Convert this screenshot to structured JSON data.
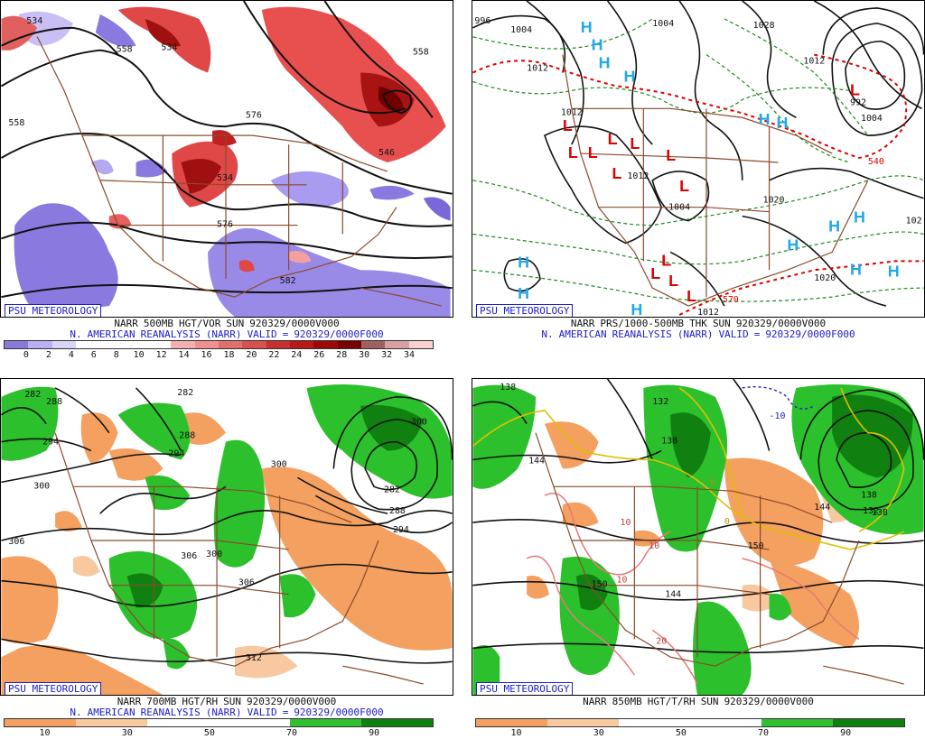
{
  "credit": "PSU METEOROLOGY",
  "panels": [
    {
      "id": "p500",
      "line1_parts": [
        "NARR",
        "500MB",
        "HGT/VOR",
        "SUN",
        "920329/0000V000"
      ],
      "line2_parts": [
        "N.",
        "AMERICAN",
        "REANALYSIS",
        "(NARR)",
        "VALID",
        "=",
        "920329/0000F000"
      ],
      "scale_colors": [
        "#8878d8",
        "#b8b0f0",
        "#d8d4f8",
        "#ffffff",
        "#ffffff",
        "#ffffff",
        "#ffffff",
        "#f4b0b0",
        "#f09090",
        "#e07070",
        "#d85050",
        "#c83030",
        "#b81818",
        "#a00808",
        "#780000",
        "#a06060",
        "#d8a0a0",
        "#f8d0d0"
      ],
      "scale_labels": [
        "0",
        "2",
        "4",
        "6",
        "8",
        "10",
        "12",
        "14",
        "16",
        "18",
        "20",
        "22",
        "24",
        "26",
        "28",
        "30",
        "32",
        "34"
      ],
      "contour_labels": [
        "534",
        "558",
        "558",
        "534",
        "576",
        "558",
        "546",
        "576",
        "582",
        "534"
      ]
    },
    {
      "id": "pmslp",
      "line1_parts": [
        "NARR",
        "PRS/1000-500MB",
        "THK",
        "SUN",
        "920329/0000V000"
      ],
      "line2_parts": [
        "N.",
        "AMERICAN",
        "REANALYSIS",
        "(NARR)",
        "VALID",
        "=",
        "920329/0000F000"
      ],
      "pressure_labels": [
        "996",
        "1004",
        "1012",
        "1004",
        "1028",
        "1012",
        "1012",
        "1012",
        "1004",
        "1020",
        "1020",
        "1012",
        "102",
        "1004",
        "992"
      ],
      "thickness_labels": [
        "540",
        "570"
      ]
    },
    {
      "id": "p700",
      "line1_parts": [
        "NARR",
        "700MB",
        "HGT/RH",
        "SUN",
        "920329/0000V000"
      ],
      "line2_parts": [
        "N.",
        "AMERICAN",
        "REANALYSIS",
        "(NARR)",
        "VALID",
        "=",
        "920329/0000F000"
      ],
      "scale_colors": [
        "#f4a060",
        "#f4a060",
        "#f8c8a0",
        "#f8c8a0",
        "#ffffff",
        "#ffffff",
        "#ffffff",
        "#ffffff",
        "#30c030",
        "#30c030",
        "#108010",
        "#108010"
      ],
      "scale_labels": [
        "10",
        "30",
        "50",
        "70",
        "90"
      ],
      "contour_labels": [
        "282",
        "288",
        "282",
        "294",
        "288",
        "294",
        "300",
        "300",
        "282",
        "288",
        "294",
        "300",
        "306",
        "306",
        "312",
        "306",
        "300"
      ]
    },
    {
      "id": "p850",
      "line1_parts": [
        "NARR",
        "850MB",
        "HGT/T/RH",
        "SUN",
        "920329/0000V000"
      ],
      "line2_parts": [],
      "scale_colors": [
        "#f4a060",
        "#f4a060",
        "#f8c8a0",
        "#f8c8a0",
        "#ffffff",
        "#ffffff",
        "#ffffff",
        "#ffffff",
        "#30c030",
        "#30c030",
        "#108010",
        "#108010"
      ],
      "scale_labels": [
        "10",
        "30",
        "50",
        "70",
        "90"
      ],
      "contour_labels": [
        "138",
        "144",
        "138",
        "132",
        "138",
        "144",
        "150",
        "144",
        "150",
        "132",
        "138"
      ],
      "temp_labels": [
        "-10",
        "0",
        "0",
        "10",
        "10",
        "10",
        "20"
      ]
    }
  ]
}
